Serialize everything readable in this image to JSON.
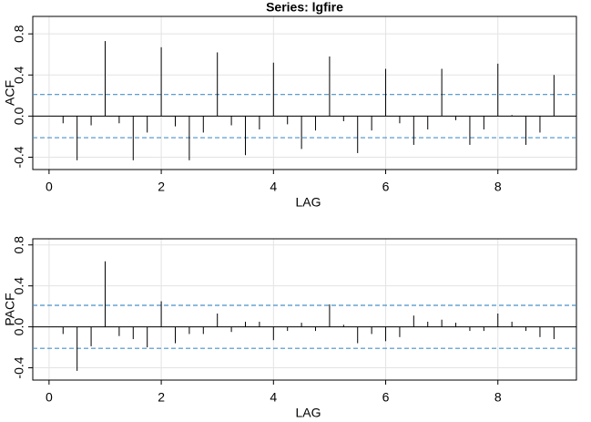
{
  "chart_data": [
    {
      "type": "bar",
      "title": "Series:  lgfire",
      "xlabel": "LAG",
      "ylabel": "ACF",
      "x": [
        0.25,
        0.5,
        0.75,
        1,
        1.25,
        1.5,
        1.75,
        2,
        2.25,
        2.5,
        2.75,
        3,
        3.25,
        3.5,
        3.75,
        4,
        4.25,
        4.5,
        4.75,
        5,
        5.25,
        5.5,
        5.75,
        6,
        6.25,
        6.5,
        6.75,
        7,
        7.25,
        7.5,
        7.75,
        8,
        8.25,
        8.5,
        8.75,
        9
      ],
      "values": [
        -0.07,
        -0.43,
        -0.09,
        0.73,
        -0.07,
        -0.43,
        -0.16,
        0.67,
        -0.1,
        -0.43,
        -0.16,
        0.62,
        -0.09,
        -0.38,
        -0.13,
        0.52,
        -0.08,
        -0.32,
        -0.14,
        0.58,
        -0.05,
        -0.36,
        -0.14,
        0.46,
        -0.07,
        -0.28,
        -0.13,
        0.46,
        -0.04,
        -0.28,
        -0.13,
        0.51,
        0.01,
        -0.28,
        -0.16,
        0.4
      ],
      "color": "#000000",
      "ci": 0.21,
      "ci_color": "#4a90c8",
      "xlim": [
        -0.29,
        9.4
      ],
      "ylim": [
        -0.52,
        0.97
      ],
      "xticks": [
        0,
        2,
        4,
        6,
        8
      ],
      "yticks": [
        -0.4,
        {
          "value": 0,
          "label": "0.0"
        },
        0.4,
        0.8
      ],
      "grid": true
    },
    {
      "type": "bar",
      "xlabel": "LAG",
      "ylabel": "PACF",
      "x": [
        0.25,
        0.5,
        0.75,
        1,
        1.25,
        1.5,
        1.75,
        2,
        2.25,
        2.5,
        2.75,
        3,
        3.25,
        3.5,
        3.75,
        4,
        4.25,
        4.5,
        4.75,
        5,
        5.25,
        5.5,
        5.75,
        6,
        6.25,
        6.5,
        6.75,
        7,
        7.25,
        7.5,
        7.75,
        8,
        8.25,
        8.5,
        8.75,
        9
      ],
      "values": [
        -0.07,
        -0.43,
        -0.19,
        0.64,
        -0.09,
        -0.12,
        -0.2,
        0.25,
        -0.16,
        -0.07,
        -0.07,
        0.13,
        -0.05,
        0.05,
        0.05,
        -0.13,
        -0.04,
        0.04,
        -0.04,
        0.22,
        0.02,
        -0.16,
        -0.07,
        -0.14,
        -0.1,
        0.11,
        0.05,
        0.07,
        0.04,
        -0.04,
        -0.04,
        0.13,
        0.05,
        -0.04,
        -0.1,
        -0.12
      ],
      "color": "#000000",
      "ci": 0.21,
      "ci_color": "#4a90c8",
      "xlim": [
        -0.29,
        9.4
      ],
      "ylim": [
        -0.52,
        0.86
      ],
      "xticks": [
        0,
        2,
        4,
        6,
        8
      ],
      "yticks": [
        -0.4,
        {
          "value": 0,
          "label": "0.0"
        },
        0.4,
        0.8
      ],
      "grid": true
    }
  ]
}
